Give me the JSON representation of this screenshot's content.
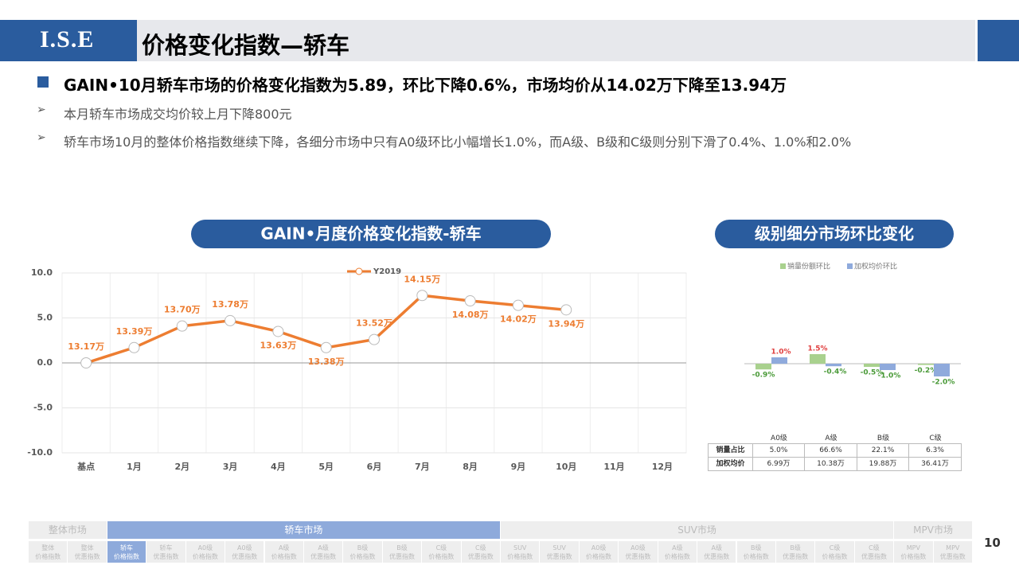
{
  "header": {
    "logo": "I.S.E",
    "title": "价格变化指数—轿车"
  },
  "bullets": {
    "main": "GAIN•10月轿车市场的价格变化指数为5.89，环比下降0.6%，市场均价从14.02万下降至13.94万",
    "items": [
      "本月轿车市场成交均价较上月下降800元",
      "轿车市场10月的整体价格指数继续下降，各细分市场中只有A0级环比小幅增长1.0%，而A级、B级和C级则分别下滑了0.4%、1.0%和2.0%"
    ]
  },
  "chart_data": [
    {
      "type": "line",
      "title": "GAIN•月度价格变化指数-轿车",
      "categories": [
        "基点",
        "1月",
        "2月",
        "3月",
        "4月",
        "5月",
        "6月",
        "7月",
        "8月",
        "9月",
        "10月",
        "11月",
        "12月"
      ],
      "series": [
        {
          "name": "Y2019",
          "color": "#ed7d31",
          "values": [
            0,
            1.7,
            4.1,
            4.7,
            3.5,
            1.7,
            2.6,
            7.5,
            6.9,
            6.4,
            5.9,
            null,
            null
          ],
          "value_labels": [
            "13.17万",
            "13.39万",
            "13.70万",
            "13.78万",
            "13.63万",
            "13.38万",
            "13.52万",
            "14.15万",
            "14.08万",
            "14.02万",
            "13.94万",
            null,
            null
          ]
        }
      ],
      "ylim": [
        -10,
        10
      ],
      "yticks": [
        {
          "value": -10,
          "label": "-10.0"
        },
        {
          "value": -5,
          "label": "-5.0"
        },
        {
          "value": 0,
          "label": "0.0"
        },
        {
          "value": 5,
          "label": "5.0"
        },
        {
          "value": 10,
          "label": "10.0"
        }
      ],
      "grid": true
    },
    {
      "type": "bar",
      "title": "级别细分市场环比变化",
      "categories": [
        "A0级",
        "A级",
        "B级",
        "C级"
      ],
      "series": [
        {
          "name": "销量份额环比",
          "color": "#a9d18e",
          "values": [
            -0.9,
            1.5,
            -0.5,
            -0.2
          ],
          "value_labels": [
            "-0.9%",
            "1.5%",
            "-0.5%",
            "-0.2%"
          ]
        },
        {
          "name": "加权均价环比",
          "color": "#8faadc",
          "values": [
            1.0,
            -0.4,
            -1.0,
            -2.0
          ],
          "value_labels": [
            "1.0%",
            "-0.4%",
            "-1.0%",
            "-2.0%"
          ]
        }
      ]
    }
  ],
  "table": {
    "rows": [
      [
        "销量占比",
        "5.0%",
        "66.6%",
        "22.1%",
        "6.3%"
      ],
      [
        "加权均价",
        "6.99万",
        "10.38万",
        "19.88万",
        "36.41万"
      ]
    ]
  },
  "nav": [
    {
      "name": "整体市场",
      "items": [
        [
          "整体",
          "价格指数"
        ],
        [
          "整体",
          "优惠指数"
        ]
      ]
    },
    {
      "name": "轿车市场",
      "items": [
        [
          "轿车",
          "价格指数"
        ],
        [
          "轿车",
          "优惠指数"
        ],
        [
          "A0级",
          "价格指数"
        ],
        [
          "A0级",
          "优惠指数"
        ],
        [
          "A级",
          "价格指数"
        ],
        [
          "A级",
          "优惠指数"
        ],
        [
          "B级",
          "价格指数"
        ],
        [
          "B级",
          "优惠指数"
        ],
        [
          "C级",
          "价格指数"
        ],
        [
          "C级",
          "优惠指数"
        ]
      ]
    },
    {
      "name": "SUV市场",
      "items": [
        [
          "SUV",
          "价格指数"
        ],
        [
          "SUV",
          "优惠指数"
        ],
        [
          "A0级",
          "价格指数"
        ],
        [
          "A0级",
          "优惠指数"
        ],
        [
          "A级",
          "价格指数"
        ],
        [
          "A级",
          "优惠指数"
        ],
        [
          "B级",
          "价格指数"
        ],
        [
          "B级",
          "优惠指数"
        ],
        [
          "C级",
          "价格指数"
        ],
        [
          "C级",
          "优惠指数"
        ]
      ]
    },
    {
      "name": "MPV市场",
      "items": [
        [
          "MPV",
          "价格指数"
        ],
        [
          "MPV",
          "优惠指数"
        ]
      ]
    }
  ],
  "page_number": "10"
}
